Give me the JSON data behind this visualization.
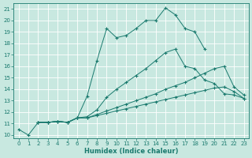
{
  "xlabel": "Humidex (Indice chaleur)",
  "bg_color": "#c8e8e0",
  "grid_color": "#ffffff",
  "line_color": "#1a7a6e",
  "xticks": [
    0,
    1,
    2,
    3,
    4,
    5,
    6,
    7,
    8,
    9,
    10,
    11,
    12,
    13,
    14,
    15,
    16,
    17,
    18,
    19,
    20,
    21,
    22,
    23
  ],
  "yticks": [
    10,
    11,
    12,
    13,
    14,
    15,
    16,
    17,
    18,
    19,
    20,
    21
  ],
  "series1_x": [
    0,
    1,
    2,
    3,
    4,
    5,
    6,
    7,
    8,
    9,
    10,
    11,
    12,
    13,
    14,
    15,
    16,
    17,
    18,
    19
  ],
  "series1_y": [
    10.5,
    10.0,
    11.1,
    11.1,
    11.2,
    11.1,
    11.5,
    13.4,
    16.5,
    19.3,
    18.5,
    18.7,
    19.3,
    20.0,
    20.0,
    21.1,
    20.5,
    19.3,
    19.0,
    17.5
  ],
  "series2_x": [
    2,
    3,
    4,
    5,
    6,
    7,
    8,
    9,
    10,
    11,
    12,
    13,
    14,
    15,
    16,
    17,
    18,
    19,
    20,
    21,
    22,
    23
  ],
  "series2_y": [
    11.1,
    11.1,
    11.2,
    11.1,
    11.5,
    11.6,
    12.2,
    13.3,
    14.0,
    14.6,
    15.2,
    15.8,
    16.5,
    17.2,
    17.5,
    16.0,
    15.8,
    14.8,
    14.5,
    13.6,
    13.5,
    13.2
  ],
  "series3_x": [
    2,
    3,
    4,
    5,
    6,
    7,
    8,
    9,
    10,
    11,
    12,
    13,
    14,
    15,
    16,
    17,
    18,
    19,
    20,
    21,
    22,
    23
  ],
  "series3_y": [
    11.1,
    11.1,
    11.2,
    11.1,
    11.5,
    11.5,
    11.8,
    12.1,
    12.4,
    12.7,
    13.0,
    13.3,
    13.6,
    14.0,
    14.3,
    14.6,
    15.0,
    15.4,
    15.8,
    16.0,
    14.2,
    13.5
  ],
  "series4_x": [
    2,
    3,
    4,
    5,
    6,
    7,
    8,
    9,
    10,
    11,
    12,
    13,
    14,
    15,
    16,
    17,
    18,
    19,
    20,
    21,
    22,
    23
  ],
  "series4_y": [
    11.1,
    11.1,
    11.2,
    11.1,
    11.5,
    11.5,
    11.7,
    11.9,
    12.1,
    12.3,
    12.5,
    12.7,
    12.9,
    13.1,
    13.3,
    13.5,
    13.7,
    13.9,
    14.1,
    14.2,
    13.8,
    13.2
  ]
}
